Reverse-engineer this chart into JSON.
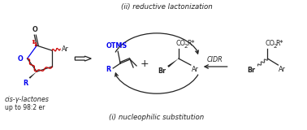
{
  "background_color": "#ffffff",
  "fig_width": 3.78,
  "fig_height": 1.6,
  "dpi": 100,
  "text_reductive": "(ii) reductive lactonization",
  "text_nucleophilic": "(i) nucleophilic substitution",
  "text_cidr": "CIDR",
  "text_cis": "cis-γ-lactones",
  "text_upto": "up to 98:2 er",
  "color_blue": "#0000ee",
  "color_red": "#cc0000",
  "color_black": "#222222",
  "color_gray": "#555555",
  "fontsize_label": 6.2,
  "fontsize_small": 5.8,
  "fontsize_tiny": 5.2
}
